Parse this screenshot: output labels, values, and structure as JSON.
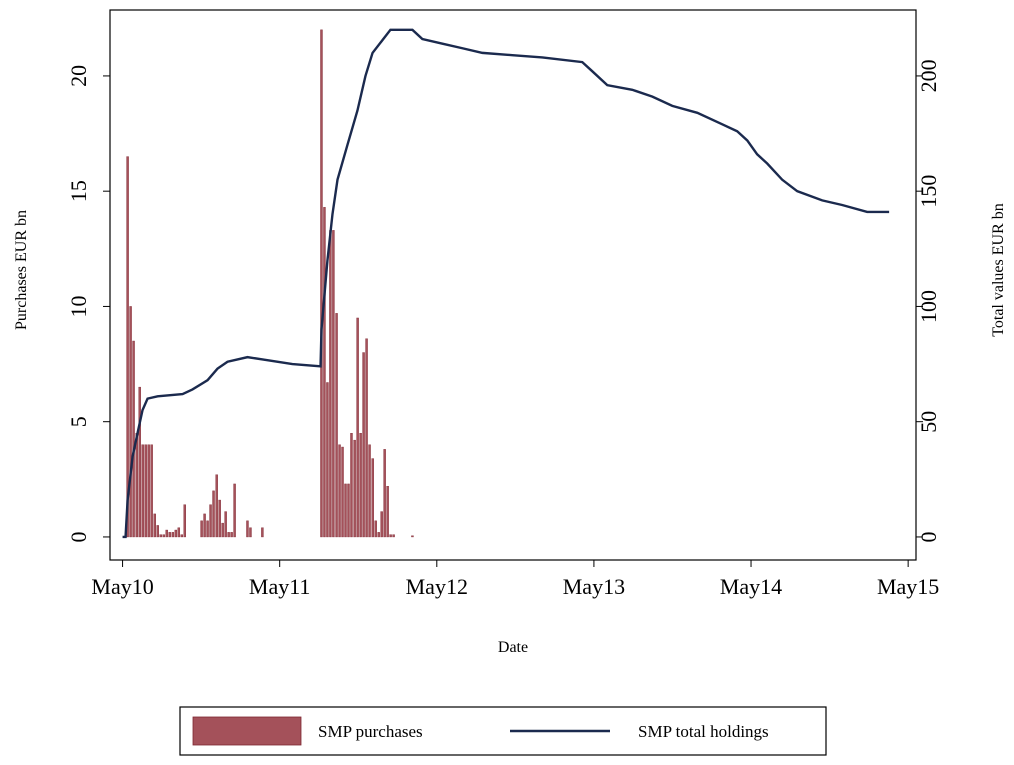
{
  "chart_data": {
    "type": "combo",
    "y_label": "Purchases EUR bn",
    "y2_label": "Total values EUR bn",
    "x_label": "Date",
    "xlim": [
      2010.25,
      2015.38
    ],
    "xticks": [
      {
        "value": 2010.33,
        "label": "May10"
      },
      {
        "value": 2011.33,
        "label": "May11"
      },
      {
        "value": 2012.33,
        "label": "May12"
      },
      {
        "value": 2013.33,
        "label": "May13"
      },
      {
        "value": 2014.33,
        "label": "May14"
      },
      {
        "value": 2015.33,
        "label": "May15"
      }
    ],
    "ylim": [
      -1,
      22.86
    ],
    "yticks": [
      0,
      5,
      10,
      15,
      20
    ],
    "y2lim": [
      -10,
      228.6
    ],
    "y2ticks": [
      0,
      50,
      100,
      150,
      200
    ],
    "legend": "bottom",
    "series": [
      {
        "name": "SMP purchases",
        "type": "bar",
        "color": "#a4515a",
        "axis": "y",
        "x": [
          2010.362,
          2010.381,
          2010.4,
          2010.42,
          2010.439,
          2010.458,
          2010.477,
          2010.496,
          2010.515,
          2010.535,
          2010.554,
          2010.573,
          2010.592,
          2010.611,
          2010.63,
          2010.65,
          2010.669,
          2010.688,
          2010.707,
          2010.726,
          2010.833,
          2010.852,
          2010.871,
          2010.89,
          2010.909,
          2010.929,
          2010.948,
          2010.967,
          2010.986,
          2011.005,
          2011.024,
          2011.043,
          2011.125,
          2011.144,
          2011.22,
          2011.596,
          2011.615,
          2011.634,
          2011.653,
          2011.672,
          2011.692,
          2011.711,
          2011.73,
          2011.749,
          2011.768,
          2011.787,
          2011.807,
          2011.826,
          2011.845,
          2011.864,
          2011.883,
          2011.902,
          2011.922,
          2011.941,
          2011.96,
          2011.979,
          2011.998,
          2012.017,
          2012.036,
          2012.055,
          2012.175
        ],
        "values": [
          16.5,
          10,
          8.5,
          4.5,
          6.5,
          4,
          4,
          4,
          4,
          1,
          0.5,
          0.1,
          0.1,
          0.3,
          0.2,
          0.2,
          0.3,
          0.4,
          0.1,
          1.4,
          0.7,
          1.0,
          0.7,
          1.4,
          2.0,
          2.7,
          1.6,
          0.6,
          1.1,
          0.2,
          0.2,
          2.3,
          0.7,
          0.4,
          0.4,
          22,
          14.3,
          6.7,
          13.3,
          13.3,
          9.7,
          4,
          3.9,
          2.3,
          2.3,
          4.5,
          4.2,
          9.5,
          4.5,
          8,
          8.6,
          4,
          3.4,
          0.7,
          0.2,
          1.1,
          3.8,
          2.2,
          0.1,
          0.1,
          0.05
        ]
      },
      {
        "name": "SMP total holdings",
        "type": "line",
        "color": "#1b2a4e",
        "axis": "y2",
        "x": [
          2010.33,
          2010.349,
          2010.362,
          2010.394,
          2010.425,
          2010.457,
          2010.489,
          2010.553,
          2010.712,
          2010.775,
          2010.871,
          2010.934,
          2010.998,
          2011.125,
          2011.221,
          2011.411,
          2011.59,
          2011.596,
          2011.634,
          2011.666,
          2011.698,
          2011.761,
          2011.825,
          2011.876,
          2011.921,
          2012.035,
          2012.175,
          2012.238,
          2012.366,
          2012.493,
          2012.62,
          2012.811,
          2013.002,
          2013.256,
          2013.32,
          2013.415,
          2013.574,
          2013.702,
          2013.829,
          2013.988,
          2014.147,
          2014.242,
          2014.306,
          2014.369,
          2014.433,
          2014.528,
          2014.624,
          2014.783,
          2014.91,
          2015.069,
          2015.209
        ],
        "values": [
          0,
          0,
          16,
          35,
          45,
          55,
          60,
          61,
          62,
          64,
          68,
          73,
          76,
          78,
          77,
          75,
          74,
          90,
          120,
          140,
          155,
          170,
          185,
          200,
          210,
          220,
          220,
          216,
          214,
          212,
          210,
          209,
          208,
          206,
          202,
          196,
          194,
          191,
          187,
          184,
          179,
          176,
          172,
          166,
          162,
          155,
          150,
          146,
          144,
          141,
          141
        ]
      }
    ]
  }
}
